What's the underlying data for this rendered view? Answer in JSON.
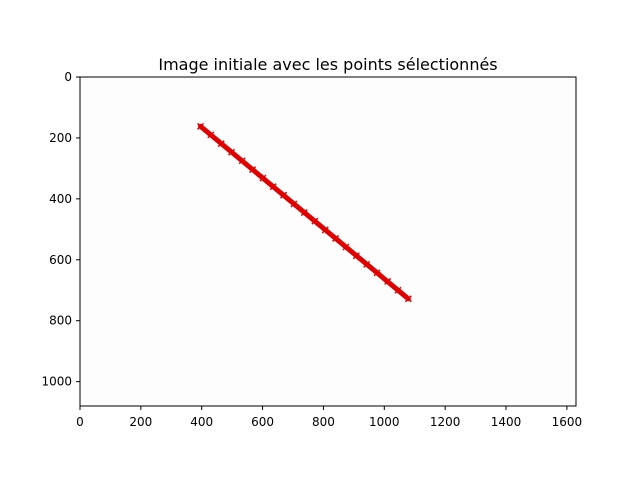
{
  "chart_data": {
    "type": "scatter",
    "title": "Image initiale avec les points sélectionnés",
    "xlabel": "",
    "ylabel": "",
    "xlim": [
      0,
      1630
    ],
    "ylim": [
      1080,
      0
    ],
    "y_axis_inverted": true,
    "grid": false,
    "legend": "none",
    "x_ticks": [
      0,
      200,
      400,
      600,
      800,
      1000,
      1200,
      1400,
      1600
    ],
    "y_ticks": [
      0,
      200,
      400,
      600,
      800,
      1000
    ],
    "series": [
      {
        "marker": "x",
        "color": "#e00000",
        "points": {
          "start": [
            396,
            162
          ],
          "end": [
            1079,
            728
          ],
          "x": [
            396,
            430,
            464,
            498,
            533,
            567,
            601,
            635,
            669,
            703,
            737,
            772,
            806,
            840,
            874,
            908,
            942,
            976,
            1011,
            1045,
            1079
          ],
          "y": [
            162,
            190,
            219,
            247,
            275,
            304,
            332,
            360,
            388,
            417,
            445,
            473,
            502,
            530,
            558,
            587,
            615,
            643,
            671,
            700,
            728
          ]
        }
      }
    ],
    "background_color": "#fdfdfd"
  }
}
